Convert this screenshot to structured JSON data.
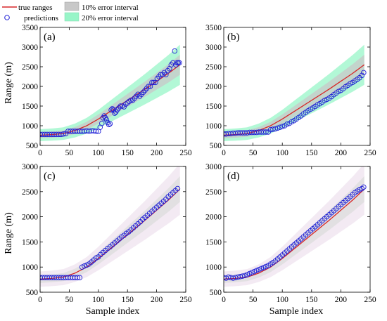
{
  "figure": {
    "xlabel": "Sample index",
    "ylabel": "Range (m)"
  },
  "legend": {
    "entries": [
      {
        "label": "true ranges",
        "color": "#d62728"
      },
      {
        "label": "10% error interval",
        "color": "#c8c8c8"
      },
      {
        "label": "predictions",
        "color": "#1f1fd6"
      },
      {
        "label": "20% error interval",
        "color": "#98f5c8"
      }
    ]
  },
  "chart_data": [
    {
      "type": "scatter",
      "panel_label": "(a)",
      "xlabel": "",
      "ylabel": "Range (m)",
      "xlim": [
        0,
        250
      ],
      "ylim": [
        500,
        3500
      ],
      "xticks": [
        0,
        50,
        100,
        150,
        200,
        250
      ],
      "yticks": [
        500,
        1000,
        1500,
        2000,
        2500,
        3000,
        3500
      ],
      "band20_color": "#98f5c8",
      "band10_color": "#c8c8c8",
      "true_ranges": {
        "x": [
          0,
          20,
          40,
          60,
          80,
          100,
          120,
          140,
          160,
          180,
          200,
          220,
          240
        ],
        "y": [
          760,
          775,
          800,
          880,
          1000,
          1170,
          1360,
          1550,
          1740,
          1930,
          2130,
          2330,
          2550
        ]
      },
      "predictions": {
        "x": [
          0,
          4,
          8,
          12,
          16,
          20,
          24,
          28,
          32,
          36,
          40,
          44,
          48,
          52,
          56,
          60,
          64,
          68,
          72,
          76,
          80,
          84,
          88,
          92,
          96,
          100,
          103,
          106,
          108,
          110,
          112,
          114,
          116,
          118,
          120,
          122,
          124,
          126,
          128,
          130,
          132,
          135,
          138,
          141,
          144,
          147,
          150,
          153,
          156,
          159,
          162,
          165,
          168,
          171,
          174,
          177,
          180,
          183,
          186,
          189,
          192,
          195,
          198,
          201,
          204,
          207,
          210,
          213,
          216,
          219,
          222,
          225,
          228,
          231,
          233,
          235,
          237,
          239
        ],
        "y": [
          780,
          780,
          780,
          780,
          780,
          780,
          780,
          780,
          780,
          780,
          790,
          800,
          860,
          860,
          860,
          860,
          860,
          860,
          860,
          860,
          870,
          860,
          870,
          870,
          860,
          860,
          960,
          1060,
          1200,
          1250,
          1200,
          1150,
          1080,
          1030,
          1050,
          1400,
          1430,
          1400,
          1320,
          1350,
          1400,
          1450,
          1500,
          1500,
          1480,
          1550,
          1580,
          1620,
          1650,
          1650,
          1700,
          1750,
          1800,
          1750,
          1800,
          1850,
          1900,
          1950,
          2000,
          2000,
          2100,
          2100,
          2100,
          2200,
          2250,
          2300,
          2300,
          2350,
          2300,
          2400,
          2450,
          2550,
          2600,
          2900,
          2550,
          2600,
          2600,
          2600
        ]
      }
    },
    {
      "type": "scatter",
      "panel_label": "(b)",
      "xlabel": "",
      "ylabel": "",
      "xlim": [
        0,
        250
      ],
      "ylim": [
        500,
        3500
      ],
      "xticks": [
        0,
        50,
        100,
        150,
        200,
        250
      ],
      "yticks": [
        500,
        1000,
        1500,
        2000,
        2500,
        3000,
        3500
      ],
      "band20_color": "#98f5c8",
      "band10_color": "#c8c8c8",
      "true_ranges": {
        "x": [
          0,
          20,
          40,
          60,
          80,
          100,
          120,
          140,
          160,
          180,
          200,
          220,
          240
        ],
        "y": [
          760,
          775,
          800,
          880,
          1000,
          1170,
          1360,
          1550,
          1740,
          1930,
          2130,
          2330,
          2550
        ]
      },
      "predictions": {
        "x": [
          0,
          4,
          8,
          12,
          16,
          20,
          24,
          28,
          32,
          36,
          40,
          44,
          48,
          52,
          56,
          60,
          64,
          68,
          72,
          76,
          80,
          84,
          88,
          92,
          96,
          100,
          104,
          108,
          112,
          116,
          120,
          124,
          128,
          132,
          136,
          140,
          144,
          148,
          152,
          156,
          160,
          164,
          168,
          172,
          176,
          180,
          184,
          188,
          192,
          196,
          200,
          204,
          208,
          212,
          216,
          220,
          224,
          228,
          232,
          236,
          239
        ],
        "y": [
          790,
          790,
          800,
          800,
          810,
          810,
          820,
          820,
          820,
          820,
          820,
          830,
          830,
          830,
          830,
          840,
          840,
          840,
          840,
          840,
          900,
          910,
          920,
          940,
          960,
          980,
          1000,
          1040,
          1060,
          1100,
          1130,
          1170,
          1210,
          1250,
          1300,
          1340,
          1380,
          1420,
          1450,
          1490,
          1530,
          1560,
          1600,
          1640,
          1670,
          1700,
          1740,
          1790,
          1830,
          1870,
          1900,
          1940,
          1990,
          2030,
          2070,
          2100,
          2140,
          2180,
          2220,
          2280,
          2350
        ]
      }
    },
    {
      "type": "scatter",
      "panel_label": "(c)",
      "xlabel": "Sample index",
      "ylabel": "Range (m)",
      "xlim": [
        0,
        250
      ],
      "ylim": [
        500,
        3000
      ],
      "xticks": [
        0,
        50,
        100,
        150,
        200,
        250
      ],
      "yticks": [
        500,
        1000,
        1500,
        2000,
        2500,
        3000
      ],
      "band20_color": "#efe3ef",
      "band10_color": "#dcdcdc",
      "true_ranges": {
        "x": [
          0,
          20,
          40,
          60,
          80,
          100,
          120,
          140,
          160,
          180,
          200,
          220,
          240
        ],
        "y": [
          760,
          775,
          800,
          880,
          1000,
          1170,
          1360,
          1550,
          1740,
          1930,
          2130,
          2330,
          2550
        ]
      },
      "predictions": {
        "x": [
          0,
          4,
          8,
          12,
          16,
          20,
          24,
          28,
          32,
          36,
          40,
          44,
          48,
          52,
          56,
          60,
          64,
          68,
          72,
          76,
          80,
          84,
          88,
          92,
          96,
          100,
          104,
          108,
          112,
          116,
          120,
          124,
          128,
          132,
          136,
          140,
          144,
          148,
          152,
          156,
          160,
          164,
          168,
          172,
          176,
          180,
          184,
          188,
          192,
          196,
          200,
          204,
          208,
          212,
          216,
          220,
          224,
          228,
          232,
          236
        ],
        "y": [
          790,
          790,
          790,
          790,
          790,
          790,
          790,
          790,
          790,
          790,
          790,
          790,
          790,
          790,
          790,
          790,
          790,
          790,
          1000,
          1020,
          1040,
          1060,
          1100,
          1140,
          1180,
          1200,
          1250,
          1290,
          1330,
          1370,
          1400,
          1440,
          1480,
          1520,
          1560,
          1600,
          1630,
          1670,
          1700,
          1740,
          1780,
          1820,
          1860,
          1900,
          1950,
          1990,
          2030,
          2070,
          2110,
          2150,
          2190,
          2230,
          2270,
          2310,
          2350,
          2400,
          2440,
          2480,
          2520,
          2560
        ]
      }
    },
    {
      "type": "scatter",
      "panel_label": "(d)",
      "xlabel": "Sample index",
      "ylabel": "",
      "xlim": [
        0,
        250
      ],
      "ylim": [
        500,
        3000
      ],
      "xticks": [
        0,
        50,
        100,
        150,
        200,
        250
      ],
      "yticks": [
        500,
        1000,
        1500,
        2000,
        2500,
        3000
      ],
      "band20_color": "#efe3ef",
      "band10_color": "#dcdcdc",
      "true_ranges": {
        "x": [
          0,
          20,
          40,
          60,
          80,
          100,
          120,
          140,
          160,
          180,
          200,
          220,
          240
        ],
        "y": [
          760,
          775,
          800,
          880,
          1000,
          1170,
          1360,
          1550,
          1740,
          1930,
          2130,
          2330,
          2550
        ]
      },
      "predictions": {
        "x": [
          0,
          4,
          8,
          12,
          16,
          20,
          24,
          28,
          32,
          36,
          40,
          44,
          48,
          52,
          56,
          60,
          64,
          68,
          72,
          76,
          80,
          84,
          88,
          92,
          96,
          100,
          104,
          108,
          112,
          116,
          120,
          124,
          128,
          132,
          136,
          140,
          144,
          148,
          152,
          156,
          160,
          164,
          168,
          172,
          176,
          180,
          184,
          188,
          192,
          196,
          200,
          204,
          208,
          212,
          216,
          220,
          224,
          228,
          232,
          236,
          239
        ],
        "y": [
          790,
          780,
          800,
          790,
          780,
          790,
          800,
          810,
          820,
          830,
          850,
          870,
          890,
          910,
          930,
          950,
          970,
          990,
          1010,
          1030,
          1060,
          1090,
          1120,
          1160,
          1200,
          1240,
          1280,
          1320,
          1360,
          1400,
          1440,
          1480,
          1520,
          1560,
          1600,
          1640,
          1680,
          1720,
          1760,
          1800,
          1840,
          1880,
          1920,
          1960,
          2000,
          2040,
          2080,
          2120,
          2160,
          2200,
          2240,
          2280,
          2320,
          2360,
          2400,
          2440,
          2480,
          2510,
          2540,
          2560,
          2590
        ]
      }
    }
  ]
}
